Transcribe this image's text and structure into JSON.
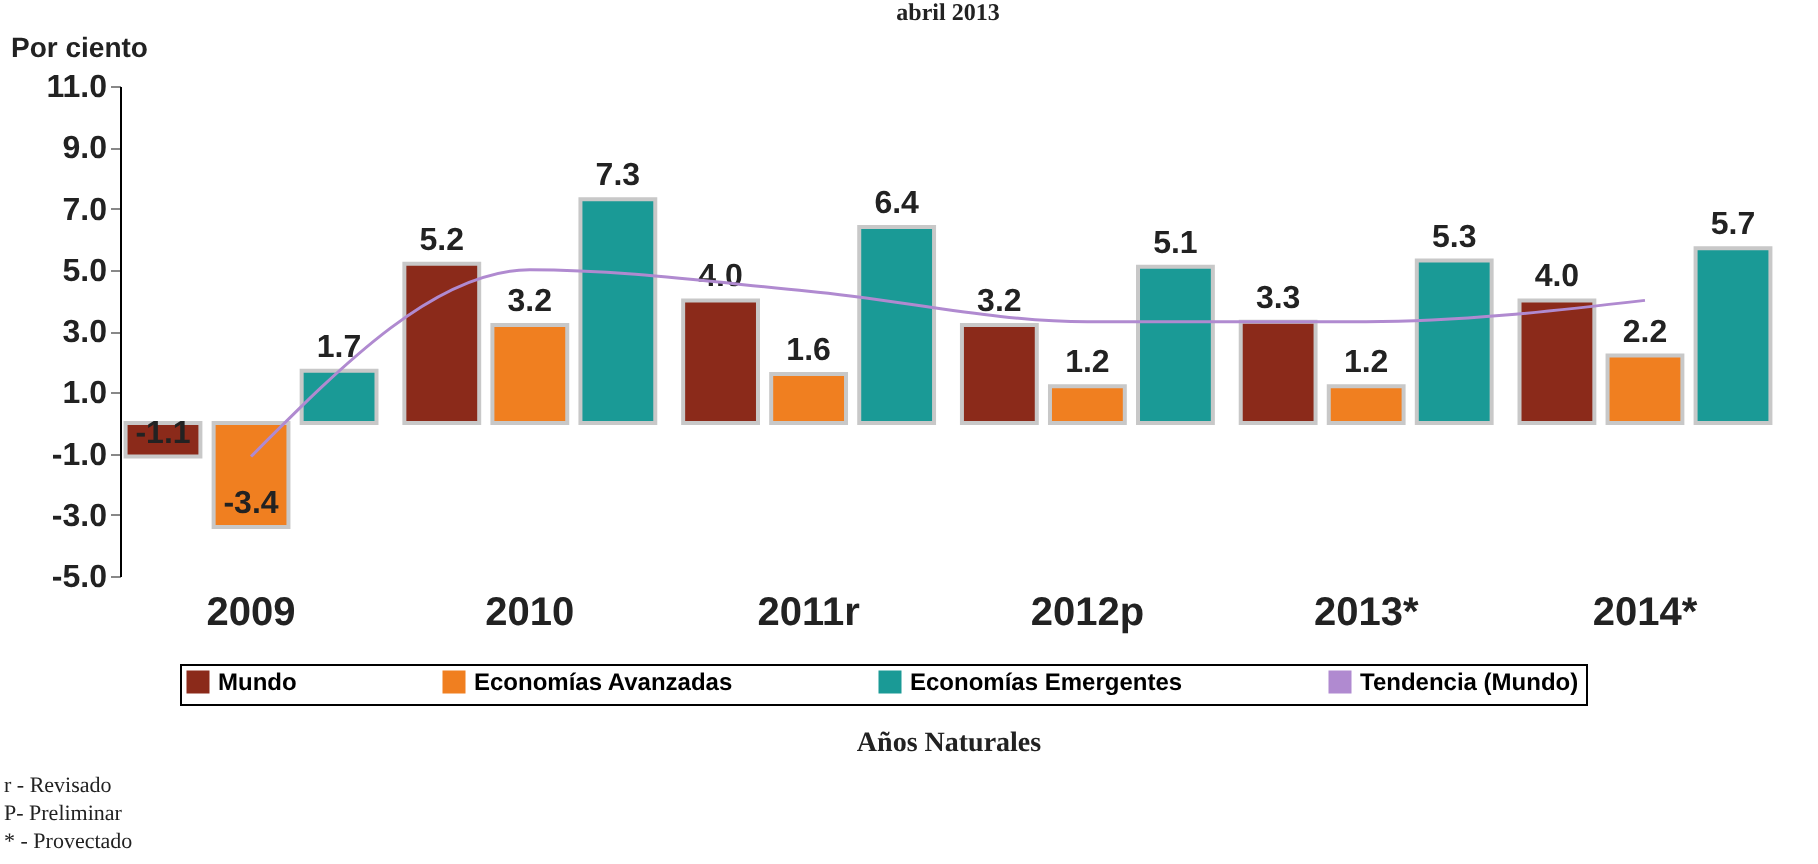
{
  "chart_data": {
    "type": "bar",
    "title": "abril 2013",
    "ylabel": "Por ciento",
    "xlabel": "Años Naturales",
    "categories": [
      "2009",
      "2010",
      "2011r",
      "2012p",
      "2013*",
      "2014*"
    ],
    "series": [
      {
        "name": "Mundo",
        "color": "#8b2a1a",
        "values": [
          -1.1,
          5.2,
          4.0,
          3.2,
          3.3,
          4.0
        ],
        "value_labels": [
          "-1.1",
          "5.2",
          "4.0",
          "3.2",
          "3.3",
          "4.0"
        ]
      },
      {
        "name": "Economías Avanzadas",
        "color": "#f07f20",
        "values": [
          -3.4,
          3.2,
          1.6,
          1.2,
          1.2,
          2.2
        ],
        "value_labels": [
          "-3.4",
          "3.2",
          "1.6",
          "1.2",
          "1.2",
          "2.2"
        ]
      },
      {
        "name": "Economías Emergentes",
        "color": "#1a9a96",
        "values": [
          1.7,
          7.3,
          6.4,
          5.1,
          5.3,
          5.7
        ],
        "value_labels": [
          "1.7",
          "7.3",
          "6.4",
          "5.1",
          "5.3",
          "5.7"
        ]
      },
      {
        "name": "Tendencia (Mundo)",
        "type": "line",
        "color": "#b08ad0",
        "values": [
          -1.1,
          5.0,
          4.3,
          3.3,
          3.3,
          4.0
        ]
      }
    ],
    "ylim": [
      -5,
      11
    ],
    "yticks": [
      {
        "value": -5,
        "label": "-5.0"
      },
      {
        "value": -3,
        "label": "-3.0"
      },
      {
        "value": -1,
        "label": "-1.0"
      },
      {
        "value": 1,
        "label": "1.0"
      },
      {
        "value": 3,
        "label": "3.0"
      },
      {
        "value": 5,
        "label": "5.0"
      },
      {
        "value": 7,
        "label": "7.0"
      },
      {
        "value": 9,
        "label": "9.0"
      },
      {
        "value": 11,
        "label": "11.0"
      }
    ],
    "grid": false,
    "legend": "bottom",
    "annotations": [
      "r - Revisado",
      "P- Preliminar",
      "* - Provectado"
    ]
  }
}
